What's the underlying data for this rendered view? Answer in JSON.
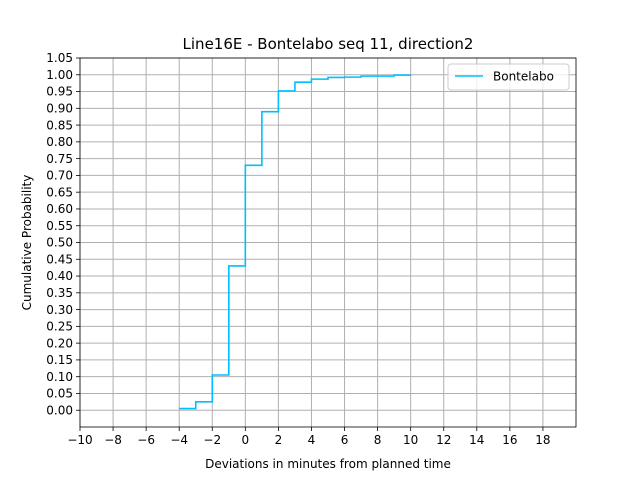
{
  "chart_data": {
    "type": "line",
    "drawstyle": "steps-post",
    "title": "Line16E - Bontelabo seq 11, direction2",
    "xlabel": "Deviations in minutes from planned time",
    "ylabel": "Cumulative Probability",
    "xlim": [
      -10,
      20
    ],
    "ylim": [
      -0.05,
      1.05
    ],
    "xticks": [
      -10,
      -8,
      -6,
      -4,
      -2,
      0,
      2,
      4,
      6,
      8,
      10,
      12,
      14,
      16,
      18
    ],
    "xtick_labels": [
      "−10",
      "−8",
      "−6",
      "−4",
      "−2",
      "0",
      "2",
      "4",
      "6",
      "8",
      "10",
      "12",
      "14",
      "16",
      "18"
    ],
    "yticks": [
      0.0,
      0.05,
      0.1,
      0.15,
      0.2,
      0.25,
      0.3,
      0.35,
      0.4,
      0.45,
      0.5,
      0.55,
      0.6,
      0.65,
      0.7,
      0.75,
      0.8,
      0.85,
      0.9,
      0.95,
      1.0,
      1.05
    ],
    "ytick_labels": [
      "0.00",
      "0.05",
      "0.10",
      "0.15",
      "0.20",
      "0.25",
      "0.30",
      "0.35",
      "0.40",
      "0.45",
      "0.50",
      "0.55",
      "0.60",
      "0.65",
      "0.70",
      "0.75",
      "0.80",
      "0.85",
      "0.90",
      "0.95",
      "1.00",
      "1.05"
    ],
    "grid": true,
    "legend_position": "top-right",
    "series": [
      {
        "name": "Bontelabo",
        "color": "#00bfff",
        "x": [
          -4,
          -3,
          -2,
          -1,
          0,
          1,
          2,
          3,
          4,
          5,
          6,
          7,
          8,
          9,
          10
        ],
        "y": [
          0.005,
          0.025,
          0.105,
          0.43,
          0.73,
          0.89,
          0.952,
          0.978,
          0.987,
          0.992,
          0.993,
          0.996,
          0.996,
          0.999,
          1.0
        ]
      }
    ]
  }
}
